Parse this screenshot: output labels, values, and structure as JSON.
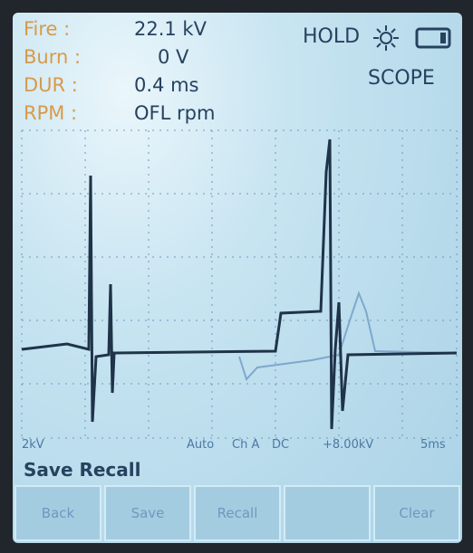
{
  "readings": [
    {
      "label": "Fire :",
      "value": "22.1 kV"
    },
    {
      "label": "Burn :",
      "value": "0 V"
    },
    {
      "label": "DUR :",
      "value": "0.4 ms"
    },
    {
      "label": "RPM :",
      "value": "OFL rpm"
    }
  ],
  "status": {
    "hold": "HOLD",
    "mode": "SCOPE"
  },
  "scope_settings": {
    "scale": "2kV",
    "trigger": "Auto",
    "channel": "Ch A",
    "coupling": "DC",
    "level": "+8.00kV",
    "timebase": "5ms"
  },
  "menu": {
    "title": "Save Recall",
    "buttons": [
      "Back",
      "Save",
      "Recall",
      "Clear"
    ]
  }
}
